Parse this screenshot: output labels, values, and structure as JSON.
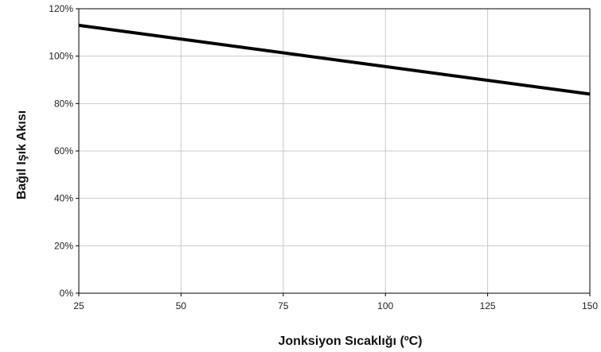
{
  "chart_data": {
    "type": "line",
    "title": "",
    "xlabel": "Jonksiyon Sıcaklığı   (ºC)",
    "ylabel": "Bağıl Işık Akısı",
    "xlim": [
      25,
      150
    ],
    "ylim": [
      0,
      120
    ],
    "x_ticks": [
      25,
      50,
      75,
      100,
      125,
      150
    ],
    "y_ticks": [
      0,
      20,
      40,
      60,
      80,
      100,
      120
    ],
    "y_tick_labels": [
      "0%",
      "20%",
      "40%",
      "60%",
      "80%",
      "100%",
      "120%"
    ],
    "grid": true,
    "series": [
      {
        "x": [
          25,
          150
        ],
        "y": [
          113,
          84
        ],
        "color": "#000000"
      }
    ]
  }
}
